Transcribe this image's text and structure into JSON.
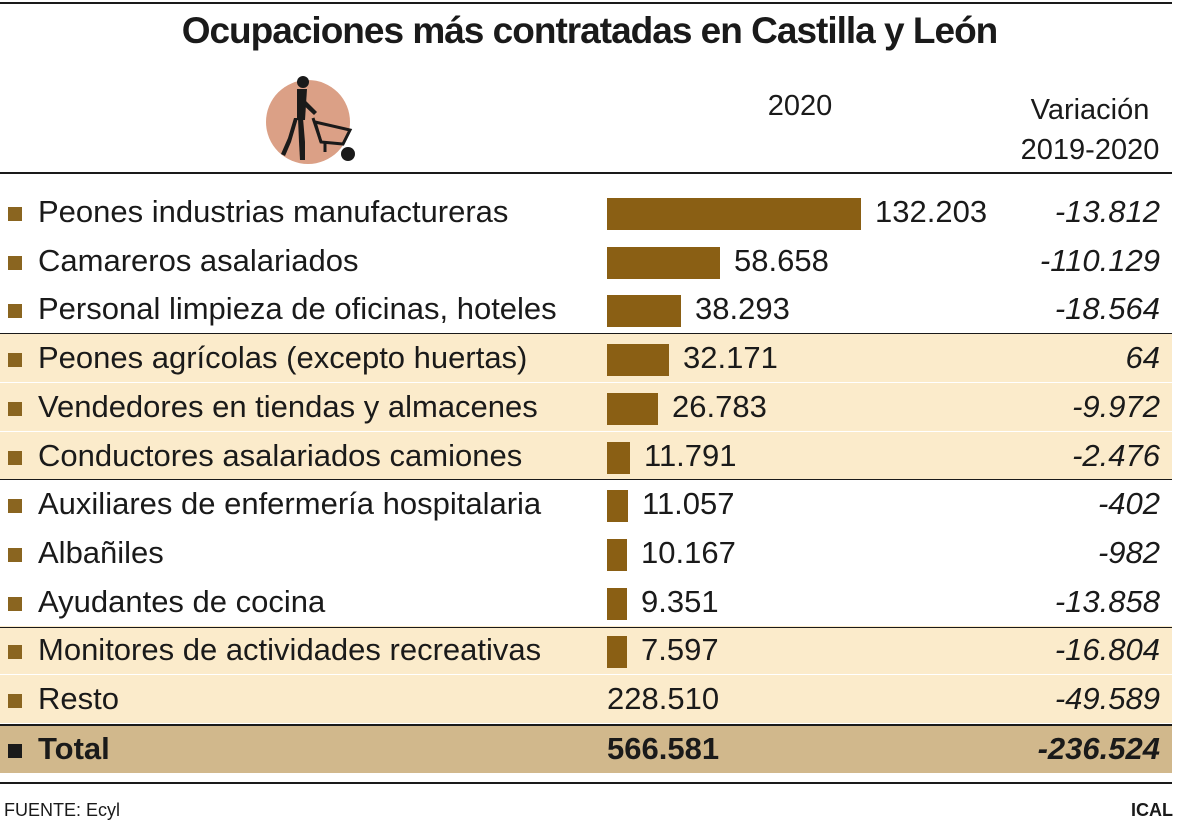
{
  "title": "Ocupaciones más contratadas en Castilla y León",
  "columns": {
    "year": "2020",
    "variation_line1": "Variación",
    "variation_line2": "2019-2020"
  },
  "colors": {
    "bar": "#8a5f14",
    "tint": "#fbebcb",
    "total": "#d1b88c",
    "icon_circle": "#dba086"
  },
  "icon": "worker-wheelbarrow-icon",
  "chart_data": {
    "type": "bar",
    "orientation": "horizontal",
    "title": "Ocupaciones más contratadas en Castilla y León",
    "categories": [
      "Peones industrias manufactureras",
      "Camareros asalariados",
      "Personal limpieza de oficinas, hoteles",
      "Peones agrícolas (excepto huertas)",
      "Vendedores en tiendas y almacenes",
      "Conductores asalariados camiones",
      "Auxiliares de enfermería hospitalaria",
      "Albañiles",
      "Ayudantes de cocina",
      "Monitores de actividades recreativas"
    ],
    "series": [
      {
        "name": "2020",
        "values": [
          132203,
          58658,
          38293,
          32171,
          26783,
          11791,
          11057,
          10167,
          9351,
          7597
        ]
      }
    ],
    "xlim": [
      0,
      132203
    ]
  },
  "rows": [
    {
      "label": "Peones industrias manufactureras",
      "value": 132203,
      "value_text": "132.203",
      "variation": "-13.812",
      "tinted": false
    },
    {
      "label": "Camareros asalariados",
      "value": 58658,
      "value_text": "58.658",
      "variation": "-110.129",
      "tinted": false
    },
    {
      "label": "Personal limpieza de oficinas, hoteles",
      "value": 38293,
      "value_text": "38.293",
      "variation": "-18.564",
      "tinted": false
    },
    {
      "label": "Peones agrícolas (excepto huertas)",
      "value": 32171,
      "value_text": "32.171",
      "variation": "64",
      "tinted": true
    },
    {
      "label": "Vendedores en tiendas y almacenes",
      "value": 26783,
      "value_text": "26.783",
      "variation": "-9.972",
      "tinted": true
    },
    {
      "label": "Conductores asalariados camiones",
      "value": 11791,
      "value_text": "11.791",
      "variation": "-2.476",
      "tinted": true
    },
    {
      "label": "Auxiliares de enfermería hospitalaria",
      "value": 11057,
      "value_text": "11.057",
      "variation": "-402",
      "tinted": false
    },
    {
      "label": "Albañiles",
      "value": 10167,
      "value_text": "10.167",
      "variation": "-982",
      "tinted": false
    },
    {
      "label": "Ayudantes de cocina",
      "value": 9351,
      "value_text": "9.351",
      "variation": "-13.858",
      "tinted": false
    },
    {
      "label": "Monitores de actividades recreativas",
      "value": 7597,
      "value_text": "7.597",
      "variation": "-16.804",
      "tinted": true
    },
    {
      "label": "Resto",
      "value": 228510,
      "value_text": "228.510",
      "variation": "-49.589",
      "tinted": true,
      "no_bar": true
    }
  ],
  "total": {
    "label": "Total",
    "value_text": "566.581",
    "variation": "-236.524"
  },
  "footer": {
    "source": "FUENTE: Ecyl",
    "brand": "ICAL"
  }
}
